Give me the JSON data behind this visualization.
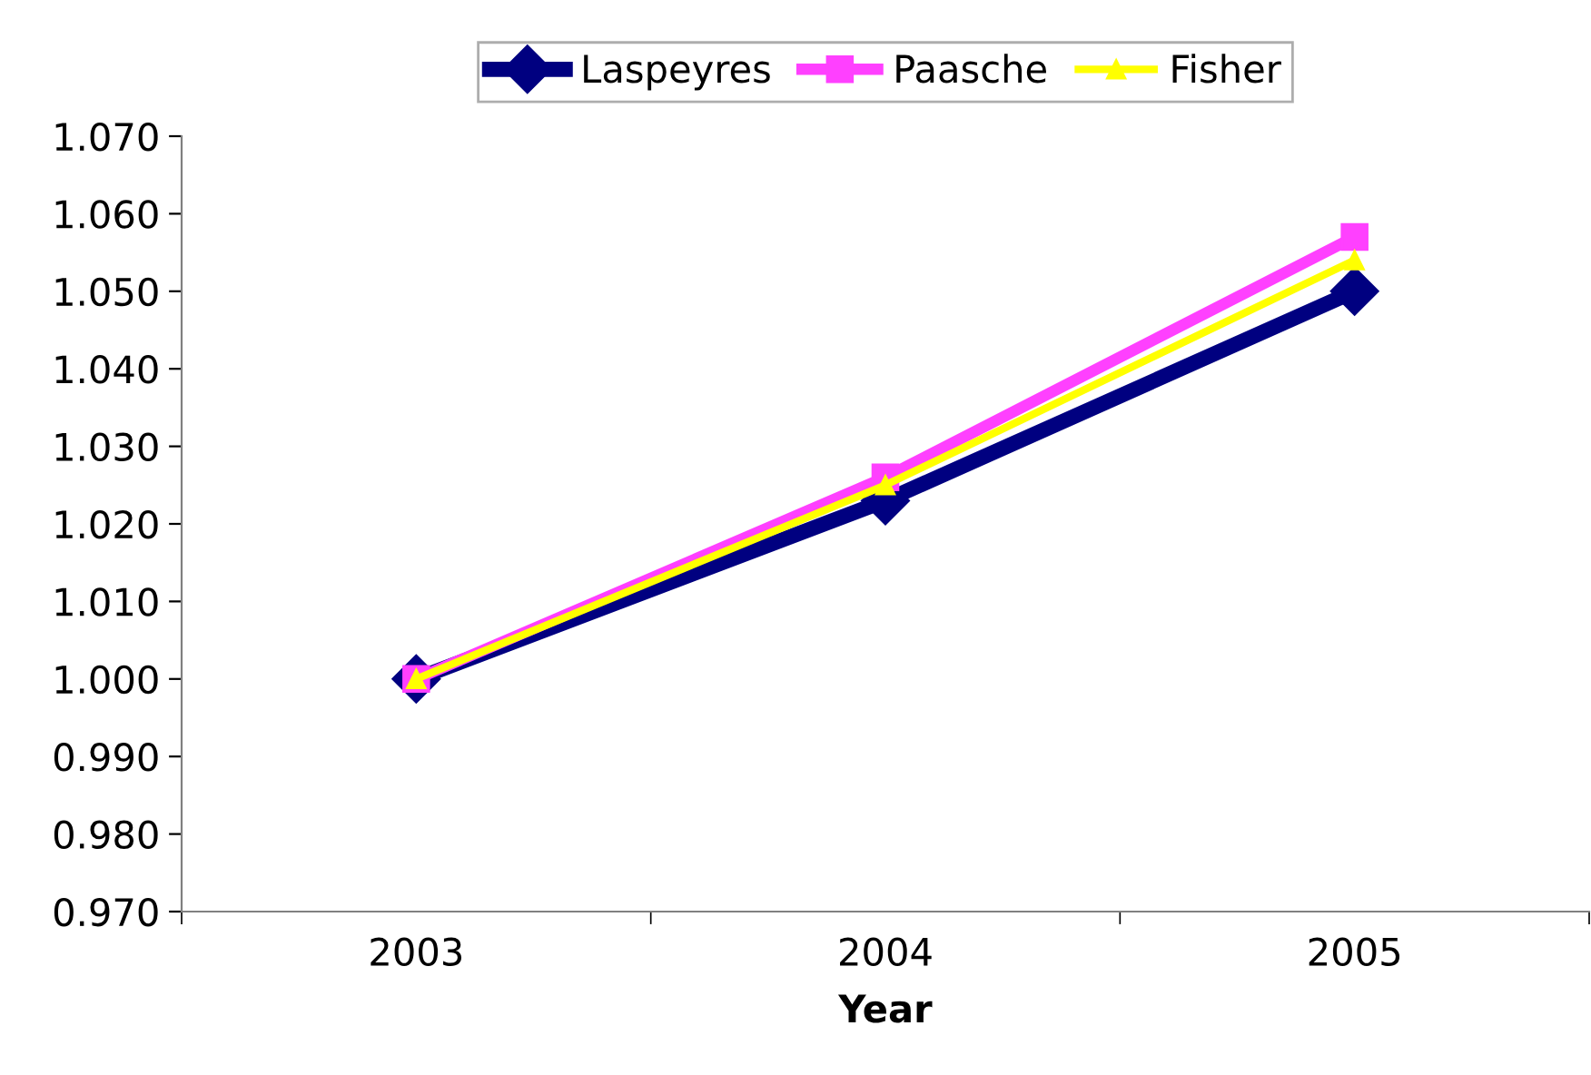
{
  "chart_data": {
    "type": "line",
    "xlabel": "Year",
    "categories": [
      "2003",
      "2004",
      "2005"
    ],
    "series": [
      {
        "name": "Laspeyres",
        "color": "#000080",
        "marker": "diamond",
        "values": [
          1.0,
          1.023,
          1.05
        ]
      },
      {
        "name": "Paasche",
        "color": "#ff40ff",
        "marker": "square",
        "values": [
          1.0,
          1.026,
          1.057
        ]
      },
      {
        "name": "Fisher",
        "color": "#ffff00",
        "marker": "triangle",
        "values": [
          1.0,
          1.025,
          1.054
        ]
      }
    ],
    "ylim": [
      0.97,
      1.07
    ],
    "yticks": [
      {
        "value": 0.97,
        "label": "0.970"
      },
      {
        "value": 0.98,
        "label": "0.980"
      },
      {
        "value": 0.99,
        "label": "0.990"
      },
      {
        "value": 1.0,
        "label": "1.000"
      },
      {
        "value": 1.01,
        "label": "1.010"
      },
      {
        "value": 1.02,
        "label": "1.020"
      },
      {
        "value": 1.03,
        "label": "1.030"
      },
      {
        "value": 1.04,
        "label": "1.040"
      },
      {
        "value": 1.05,
        "label": "1.050"
      },
      {
        "value": 1.06,
        "label": "1.060"
      },
      {
        "value": 1.07,
        "label": "1.070"
      }
    ],
    "grid": false,
    "legend": "top",
    "line_style": "solid"
  }
}
